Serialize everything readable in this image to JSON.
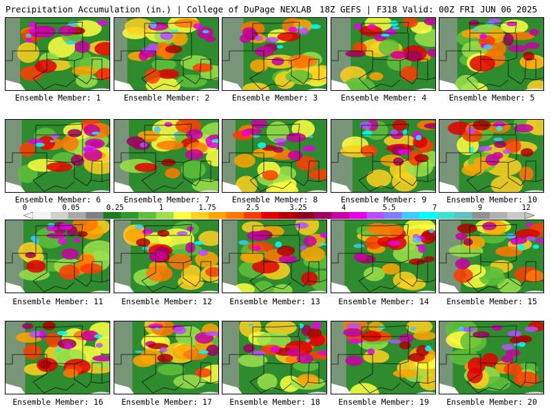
{
  "header": {
    "left": "Precipitation Accumulation (in.) | College of DuPage NEXLAB",
    "right": "18Z GEFS | F318 Valid: 00Z FRI JUN 06 2025"
  },
  "panels": [
    {
      "label": "Ensemble Member: 1"
    },
    {
      "label": "Ensemble Member: 2"
    },
    {
      "label": "Ensemble Member: 3"
    },
    {
      "label": "Ensemble Member: 4"
    },
    {
      "label": "Ensemble Member: 5"
    },
    {
      "label": "Ensemble Member: 6"
    },
    {
      "label": "Ensemble Member: 7"
    },
    {
      "label": "Ensemble Member: 8"
    },
    {
      "label": "Ensemble Member: 9"
    },
    {
      "label": "Ensemble Member: 10"
    },
    {
      "label": "Ensemble Member: 11"
    },
    {
      "label": "Ensemble Member: 12"
    },
    {
      "label": "Ensemble Member: 13"
    },
    {
      "label": "Ensemble Member: 14"
    },
    {
      "label": "Ensemble Member: 15"
    },
    {
      "label": "Ensemble Member: 16"
    },
    {
      "label": "Ensemble Member: 17"
    },
    {
      "label": "Ensemble Member: 18"
    },
    {
      "label": "Ensemble Member: 19"
    },
    {
      "label": "Ensemble Member: 20"
    }
  ],
  "colorbar": {
    "ticks": [
      "0",
      "0.05",
      "0.25",
      "1",
      "1.75",
      "2.5",
      "3.25",
      "4",
      "5.5",
      "7",
      "9",
      "12"
    ],
    "colors": [
      "#f4f4f4",
      "#d0d0d0",
      "#a8a8a8",
      "#808080",
      "#1f7a1f",
      "#2e9a2e",
      "#5fbf3a",
      "#9be04a",
      "#ffff40",
      "#ffd020",
      "#ffa500",
      "#ff7800",
      "#ff3c00",
      "#e00000",
      "#b00000",
      "#8b0020",
      "#a00060",
      "#c800a0",
      "#e600e6",
      "#b450ff",
      "#8080ff",
      "#40c8ff",
      "#00ffff",
      "#40e0d0",
      "#60c0c0",
      "#909090",
      "#b0b0b0",
      "#c8c8c8"
    ]
  }
}
